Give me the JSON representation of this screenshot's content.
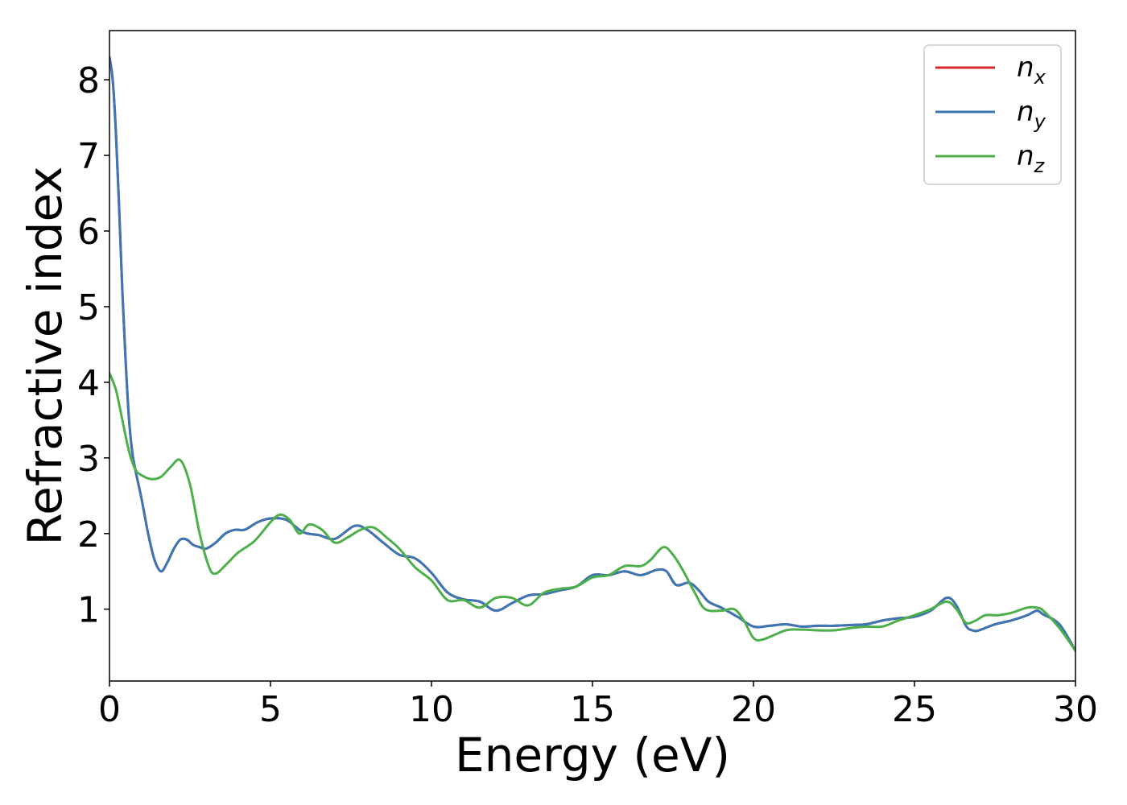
{
  "chart_data": {
    "type": "line",
    "title": "",
    "xlabel": "Energy (eV)",
    "ylabel": "Refractive index",
    "xlim": [
      0,
      30
    ],
    "ylim": [
      0.05,
      8.65
    ],
    "xticks": [
      0,
      5,
      10,
      15,
      20,
      25,
      30
    ],
    "yticks": [
      1,
      2,
      3,
      4,
      5,
      6,
      7,
      8
    ],
    "grid": false,
    "legend_position": "top-right",
    "series": [
      {
        "name": "n",
        "sub": "x",
        "color": "#d62728",
        "x": [
          0,
          0.1,
          0.2,
          0.3,
          0.4,
          0.5,
          0.6,
          0.7,
          0.8,
          1.0,
          1.2,
          1.4,
          1.6,
          1.8,
          2.0,
          2.2,
          2.4,
          2.6,
          2.8,
          3.0,
          3.3,
          3.6,
          3.9,
          4.2,
          4.6,
          5.0,
          5.5,
          6.0,
          6.5,
          7.0,
          7.6,
          8.0,
          8.5,
          9.0,
          9.5,
          10.0,
          10.5,
          11.0,
          11.5,
          12.0,
          12.5,
          13.0,
          13.5,
          14.0,
          14.5,
          15.0,
          15.5,
          16.0,
          16.5,
          17.0,
          17.3,
          17.6,
          18.0,
          18.3,
          18.6,
          19.0,
          19.5,
          20.0,
          20.5,
          21.0,
          21.5,
          22.0,
          22.5,
          23.0,
          23.5,
          24.0,
          24.5,
          25.0,
          25.5,
          26.0,
          26.3,
          26.6,
          26.8,
          27.0,
          27.5,
          28.0,
          28.5,
          28.8,
          29.0,
          29.5,
          30.0
        ],
        "y": [
          8.3,
          8.0,
          7.3,
          6.3,
          5.2,
          4.3,
          3.55,
          3.1,
          2.85,
          2.45,
          2.0,
          1.65,
          1.5,
          1.62,
          1.8,
          1.92,
          1.92,
          1.85,
          1.82,
          1.8,
          1.88,
          2.0,
          2.05,
          2.05,
          2.15,
          2.2,
          2.18,
          2.02,
          1.98,
          1.93,
          2.1,
          2.05,
          1.88,
          1.72,
          1.67,
          1.48,
          1.22,
          1.13,
          1.1,
          0.98,
          1.08,
          1.18,
          1.2,
          1.25,
          1.3,
          1.45,
          1.45,
          1.5,
          1.45,
          1.52,
          1.5,
          1.32,
          1.35,
          1.25,
          1.1,
          1.02,
          0.9,
          0.77,
          0.78,
          0.8,
          0.77,
          0.78,
          0.78,
          0.79,
          0.8,
          0.85,
          0.88,
          0.9,
          0.98,
          1.15,
          1.05,
          0.78,
          0.72,
          0.72,
          0.8,
          0.85,
          0.92,
          0.98,
          0.93,
          0.8,
          0.45
        ]
      },
      {
        "name": "n",
        "sub": "y",
        "color": "#3a77b4",
        "x": [
          0,
          0.1,
          0.2,
          0.3,
          0.4,
          0.5,
          0.6,
          0.7,
          0.8,
          1.0,
          1.2,
          1.4,
          1.6,
          1.8,
          2.0,
          2.2,
          2.4,
          2.6,
          2.8,
          3.0,
          3.3,
          3.6,
          3.9,
          4.2,
          4.6,
          5.0,
          5.5,
          6.0,
          6.5,
          7.0,
          7.6,
          8.0,
          8.5,
          9.0,
          9.5,
          10.0,
          10.5,
          11.0,
          11.5,
          12.0,
          12.5,
          13.0,
          13.5,
          14.0,
          14.5,
          15.0,
          15.5,
          16.0,
          16.5,
          17.0,
          17.3,
          17.6,
          18.0,
          18.3,
          18.6,
          19.0,
          19.5,
          20.0,
          20.5,
          21.0,
          21.5,
          22.0,
          22.5,
          23.0,
          23.5,
          24.0,
          24.5,
          25.0,
          25.5,
          26.0,
          26.3,
          26.6,
          26.8,
          27.0,
          27.5,
          28.0,
          28.5,
          28.8,
          29.0,
          29.5,
          30.0
        ],
        "y": [
          8.3,
          8.0,
          7.3,
          6.3,
          5.2,
          4.3,
          3.55,
          3.1,
          2.85,
          2.45,
          2.0,
          1.65,
          1.5,
          1.62,
          1.8,
          1.92,
          1.92,
          1.85,
          1.82,
          1.8,
          1.88,
          2.0,
          2.05,
          2.05,
          2.15,
          2.2,
          2.18,
          2.02,
          1.98,
          1.93,
          2.1,
          2.05,
          1.88,
          1.72,
          1.67,
          1.48,
          1.22,
          1.13,
          1.1,
          0.98,
          1.08,
          1.18,
          1.2,
          1.25,
          1.3,
          1.45,
          1.45,
          1.5,
          1.45,
          1.52,
          1.5,
          1.32,
          1.35,
          1.25,
          1.1,
          1.02,
          0.9,
          0.77,
          0.78,
          0.8,
          0.77,
          0.78,
          0.78,
          0.79,
          0.8,
          0.85,
          0.88,
          0.9,
          0.98,
          1.15,
          1.05,
          0.78,
          0.72,
          0.72,
          0.8,
          0.85,
          0.92,
          0.98,
          0.93,
          0.8,
          0.45
        ]
      },
      {
        "name": "n",
        "sub": "z",
        "color": "#4daf4a",
        "x": [
          0,
          0.2,
          0.4,
          0.6,
          0.8,
          1.0,
          1.3,
          1.6,
          1.9,
          2.2,
          2.5,
          2.8,
          3.1,
          3.3,
          3.6,
          4.0,
          4.5,
          5.0,
          5.3,
          5.6,
          5.9,
          6.2,
          6.6,
          7.0,
          7.4,
          7.8,
          8.2,
          8.6,
          9.0,
          9.5,
          10.0,
          10.5,
          11.0,
          11.5,
          12.0,
          12.5,
          13.0,
          13.5,
          14.0,
          14.5,
          15.0,
          15.5,
          16.0,
          16.5,
          16.8,
          17.2,
          17.5,
          17.8,
          18.2,
          18.5,
          19.0,
          19.4,
          19.7,
          20.0,
          20.3,
          21.0,
          21.5,
          22.0,
          22.5,
          23.0,
          23.5,
          24.0,
          24.5,
          25.0,
          25.5,
          26.0,
          26.3,
          26.6,
          26.9,
          27.2,
          27.6,
          28.0,
          28.5,
          28.8,
          29.0,
          29.5,
          30.0
        ],
        "y": [
          4.12,
          3.9,
          3.5,
          3.1,
          2.85,
          2.77,
          2.72,
          2.75,
          2.88,
          2.97,
          2.65,
          2.0,
          1.55,
          1.47,
          1.58,
          1.75,
          1.9,
          2.15,
          2.25,
          2.18,
          2.0,
          2.12,
          2.05,
          1.88,
          1.95,
          2.05,
          2.08,
          1.95,
          1.8,
          1.55,
          1.38,
          1.12,
          1.12,
          1.02,
          1.15,
          1.15,
          1.05,
          1.22,
          1.27,
          1.3,
          1.42,
          1.45,
          1.57,
          1.57,
          1.65,
          1.82,
          1.72,
          1.52,
          1.2,
          1.0,
          0.98,
          1.0,
          0.85,
          0.62,
          0.6,
          0.72,
          0.73,
          0.72,
          0.72,
          0.75,
          0.77,
          0.77,
          0.85,
          0.92,
          1.0,
          1.1,
          1.0,
          0.82,
          0.85,
          0.92,
          0.92,
          0.95,
          1.02,
          1.02,
          0.98,
          0.75,
          0.45
        ]
      }
    ]
  }
}
